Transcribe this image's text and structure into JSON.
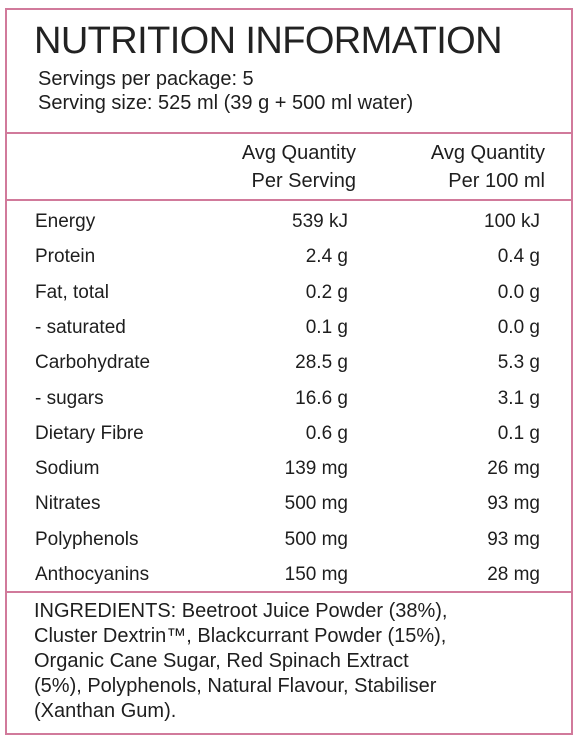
{
  "header": {
    "title": "NUTRITION INFORMATION",
    "servings": "Servings per package: 5",
    "serving_size": "Serving size: 525 ml (39 g + 500 ml water)"
  },
  "table": {
    "columns": [
      [
        "Avg Quantity",
        "Per Serving"
      ],
      [
        "Avg Quantity",
        "Per 100 ml"
      ]
    ],
    "rows": [
      [
        "Energy",
        "539 kJ",
        "100 kJ"
      ],
      [
        "Protein",
        "2.4 g",
        "0.4 g"
      ],
      [
        "Fat, total",
        "0.2 g",
        "0.0 g"
      ],
      [
        "- saturated",
        "0.1 g",
        "0.0 g"
      ],
      [
        "Carbohydrate",
        "28.5 g",
        "5.3 g"
      ],
      [
        "- sugars",
        "16.6 g",
        "3.1 g"
      ],
      [
        "Dietary Fibre",
        "0.6 g",
        "0.1 g"
      ],
      [
        "Sodium",
        "139 mg",
        "26 mg"
      ],
      [
        "Nitrates",
        "500 mg",
        "93 mg"
      ],
      [
        "Polyphenols",
        "500 mg",
        "93 mg"
      ],
      [
        "Anthocyanins",
        "150 mg",
        "28 mg"
      ]
    ]
  },
  "ingredients": {
    "lines": [
      "INGREDIENTS: Beetroot Juice Powder (38%),",
      "Cluster Dextrin™, Blackcurrant Powder (15%),",
      "Organic Cane Sugar, Red Spinach Extract",
      "(5%), Polyphenols, Natural Flavour, Stabiliser",
      "(Xanthan Gum)."
    ]
  }
}
